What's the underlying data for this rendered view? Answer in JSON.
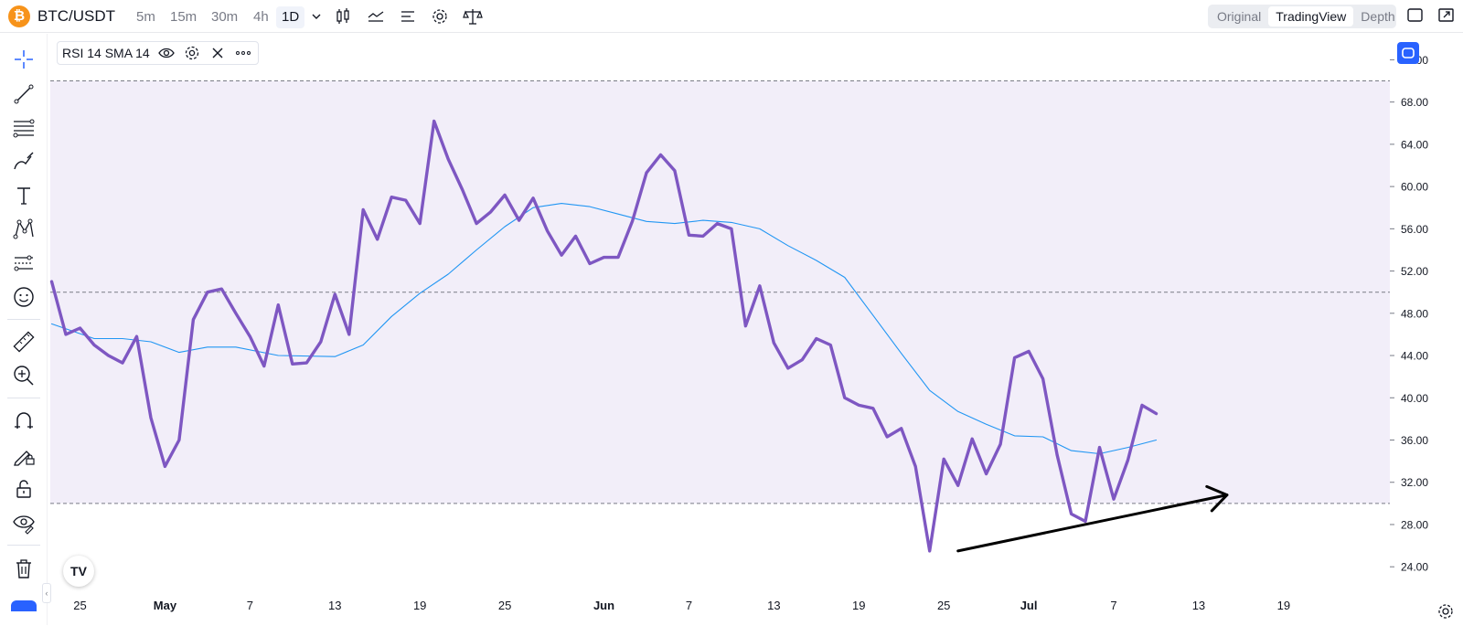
{
  "header": {
    "symbol": "BTC/USDT",
    "coin_glyph": "₿",
    "timeframes": [
      "5m",
      "15m",
      "30m",
      "4h",
      "1D"
    ],
    "active_timeframe": "1D",
    "view_modes": [
      "Original",
      "TradingView",
      "Depth"
    ],
    "active_view": "TradingView"
  },
  "legend": {
    "label": "RSI 14 SMA 14"
  },
  "logo_text": "TV",
  "colors": {
    "rsi_line": "#7e57c2",
    "sma_line": "#2196f3",
    "band_fill": "#f2eef9",
    "accent": "#2962ff",
    "coin": "#f7931a"
  },
  "left_tools": [
    "crosshair-icon",
    "trend-line-icon",
    "fib-icon",
    "brush-icon",
    "text-icon",
    "pattern-icon",
    "prediction-icon",
    "emoji-icon",
    "ruler-icon",
    "zoom-in-icon",
    "magnet-icon",
    "lock-drawing-icon",
    "unlock-icon",
    "eye-icon",
    "trash-icon"
  ],
  "chart_data": {
    "type": "line",
    "ylim": [
      22.2,
      74.2
    ],
    "y_ticks": [
      "72.00",
      "68.00",
      "64.00",
      "60.00",
      "56.00",
      "52.00",
      "48.00",
      "44.00",
      "40.00",
      "36.00",
      "32.00",
      "28.00",
      "24.00"
    ],
    "y_tick_values": [
      72,
      68,
      64,
      60,
      56,
      52,
      48,
      44,
      40,
      36,
      32,
      28,
      24
    ],
    "band": {
      "upper": 70,
      "middle": 50,
      "lower": 30
    },
    "x_ticks": [
      {
        "label": "25",
        "day": 0
      },
      {
        "label": "May",
        "day": 6
      },
      {
        "label": "7",
        "day": 12
      },
      {
        "label": "13",
        "day": 18
      },
      {
        "label": "19",
        "day": 24
      },
      {
        "label": "25",
        "day": 30
      },
      {
        "label": "Jun",
        "day": 37
      },
      {
        "label": "7",
        "day": 43
      },
      {
        "label": "13",
        "day": 49
      },
      {
        "label": "19",
        "day": 55
      },
      {
        "label": "25",
        "day": 61
      },
      {
        "label": "Jul",
        "day": 67
      },
      {
        "label": "7",
        "day": 73
      },
      {
        "label": "13",
        "day": 79
      },
      {
        "label": "19",
        "day": 85
      }
    ],
    "x_range": [
      -2.1,
      92.5
    ],
    "series": [
      {
        "name": "RSI 14",
        "x": [
          -2,
          -1,
          0,
          1,
          2,
          3,
          4,
          5,
          6,
          7,
          8,
          9,
          10,
          11,
          12,
          13,
          14,
          15,
          16,
          17,
          18,
          19,
          20,
          21,
          22,
          23,
          24,
          25,
          26,
          27,
          28,
          29,
          30,
          31,
          32,
          33,
          34,
          35,
          36,
          37,
          38,
          39,
          40,
          41,
          42,
          43,
          44,
          45,
          46,
          47,
          48,
          49,
          50,
          51,
          52,
          53,
          54,
          55,
          56,
          57,
          58,
          59,
          60,
          61,
          62,
          63,
          64,
          65,
          66,
          67,
          68,
          69,
          70,
          71,
          72,
          73,
          74,
          75,
          76
        ],
        "values": [
          51.0,
          46.0,
          46.6,
          45.0,
          44.0,
          43.3,
          45.8,
          38.1,
          33.5,
          36.0,
          47.4,
          50.0,
          50.3,
          48.0,
          45.8,
          43.0,
          48.8,
          43.2,
          43.3,
          45.3,
          49.8,
          46.0,
          57.8,
          55.0,
          59.0,
          58.7,
          56.5,
          66.2,
          62.6,
          59.7,
          56.5,
          57.6,
          59.2,
          56.8,
          58.9,
          55.8,
          53.5,
          55.3,
          52.7,
          53.3,
          53.3,
          56.7,
          61.3,
          63.0,
          61.5,
          55.4,
          55.3,
          56.5,
          56.0,
          46.8,
          50.6,
          45.2,
          42.8,
          43.6,
          45.6,
          45.0,
          40.0,
          39.3,
          39.0,
          36.3,
          37.1,
          33.5,
          25.5,
          34.2,
          31.7,
          36.1,
          32.8,
          35.6,
          43.8,
          44.4,
          41.8,
          34.6,
          29.0,
          28.3,
          35.3,
          30.4,
          34.1,
          39.3,
          38.5
        ]
      },
      {
        "name": "SMA 14",
        "x": [
          -2,
          1,
          3,
          5,
          7,
          9,
          11,
          14,
          18,
          20,
          22,
          24,
          26,
          28,
          30,
          32,
          34,
          36,
          38,
          40,
          42,
          44,
          46,
          48,
          50,
          52,
          54,
          56,
          58,
          60,
          62,
          64,
          66,
          68,
          70,
          72,
          74,
          76
        ],
        "values": [
          47.0,
          45.6,
          45.6,
          45.3,
          44.3,
          44.8,
          44.8,
          44.0,
          43.9,
          45.0,
          47.7,
          49.9,
          51.7,
          54.0,
          56.2,
          58.0,
          58.4,
          58.1,
          57.4,
          56.7,
          56.5,
          56.8,
          56.6,
          56.0,
          54.4,
          53.0,
          51.4,
          47.8,
          44.2,
          40.7,
          38.7,
          37.5,
          36.4,
          36.3,
          35.0,
          34.7,
          35.3,
          36.0
        ]
      }
    ],
    "annotation": {
      "type": "trend-line",
      "from": {
        "x": 62,
        "y": 25.5
      },
      "to": {
        "x": 81,
        "y": 30.8
      }
    }
  }
}
